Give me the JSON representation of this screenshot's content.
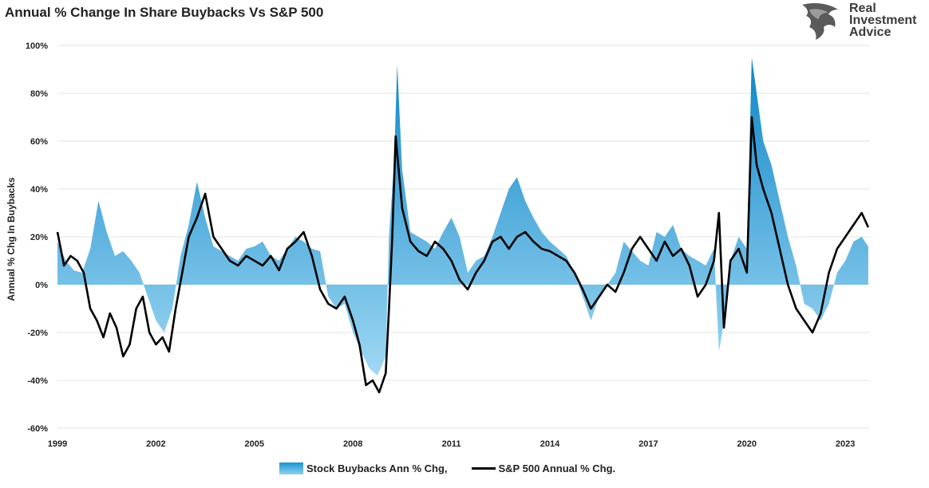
{
  "chart_data": {
    "type": "area",
    "title": "Annual % Change In Share Buybacks Vs S&P 500",
    "ylabel": "Annual % Chg In Buybacks",
    "xlabel": "",
    "ylim": [
      -60,
      100
    ],
    "xlim": [
      1999.0,
      2023.75
    ],
    "yticks": [
      "100%",
      "80%",
      "60%",
      "40%",
      "20%",
      "0%",
      "-20%",
      "-40%",
      "-60%"
    ],
    "ytick_values": [
      100,
      80,
      60,
      40,
      20,
      0,
      -20,
      -40,
      -60
    ],
    "xticks": [
      "1999",
      "2002",
      "2005",
      "2008",
      "2011",
      "2014",
      "2017",
      "2020",
      "2023"
    ],
    "xtick_values": [
      1999,
      2002,
      2005,
      2008,
      2011,
      2014,
      2017,
      2020,
      2023
    ],
    "grid": true,
    "legend_position": "bottom",
    "series": [
      {
        "name": "Stock Buybacks Ann % Chg,",
        "type": "area",
        "color": "#1b94d2",
        "x": [
          1999.0,
          1999.25,
          1999.5,
          1999.75,
          2000.0,
          2000.25,
          2000.5,
          2000.75,
          2001.0,
          2001.25,
          2001.5,
          2001.75,
          2002.0,
          2002.25,
          2002.5,
          2002.75,
          2003.0,
          2003.25,
          2003.5,
          2003.75,
          2004.0,
          2004.25,
          2004.5,
          2004.75,
          2005.0,
          2005.25,
          2005.5,
          2005.75,
          2006.0,
          2006.25,
          2006.5,
          2006.75,
          2007.0,
          2007.25,
          2007.5,
          2007.75,
          2008.0,
          2008.25,
          2008.5,
          2008.75,
          2009.0,
          2009.1,
          2009.25,
          2009.35,
          2009.5,
          2009.75,
          2010.0,
          2010.25,
          2010.5,
          2010.75,
          2011.0,
          2011.25,
          2011.5,
          2011.75,
          2012.0,
          2012.25,
          2012.5,
          2012.75,
          2013.0,
          2013.25,
          2013.5,
          2013.75,
          2014.0,
          2014.25,
          2014.5,
          2014.75,
          2015.0,
          2015.25,
          2015.5,
          2015.75,
          2016.0,
          2016.25,
          2016.5,
          2016.75,
          2017.0,
          2017.25,
          2017.5,
          2017.75,
          2018.0,
          2018.25,
          2018.5,
          2018.75,
          2019.0,
          2019.15,
          2019.25,
          2019.5,
          2019.75,
          2020.0,
          2020.15,
          2020.3,
          2020.5,
          2020.75,
          2021.0,
          2021.25,
          2021.5,
          2021.75,
          2022.0,
          2022.25,
          2022.5,
          2022.75,
          2023.0,
          2023.25,
          2023.5,
          2023.7
        ],
        "values": [
          18,
          10,
          6,
          5,
          15,
          35,
          22,
          12,
          14,
          10,
          5,
          -5,
          -15,
          -20,
          -10,
          12,
          25,
          43,
          28,
          16,
          14,
          12,
          10,
          15,
          16,
          18,
          12,
          10,
          15,
          20,
          18,
          15,
          14,
          -5,
          -10,
          -8,
          -20,
          -28,
          -35,
          -38,
          -30,
          20,
          50,
          92,
          48,
          22,
          20,
          18,
          15,
          22,
          28,
          20,
          5,
          10,
          12,
          20,
          30,
          40,
          45,
          35,
          28,
          22,
          18,
          15,
          12,
          5,
          -5,
          -15,
          -5,
          0,
          5,
          18,
          14,
          10,
          8,
          22,
          20,
          25,
          15,
          12,
          10,
          8,
          15,
          -28,
          -20,
          10,
          20,
          15,
          95,
          80,
          60,
          50,
          35,
          20,
          8,
          -8,
          -10,
          -15,
          -8,
          5,
          10,
          18,
          20,
          16
        ]
      },
      {
        "name": "S&P 500 Annual % Chg.",
        "type": "line",
        "color": "#000000",
        "x": [
          1999.0,
          1999.2,
          1999.4,
          1999.6,
          1999.8,
          2000.0,
          2000.2,
          2000.4,
          2000.6,
          2000.8,
          2001.0,
          2001.2,
          2001.4,
          2001.6,
          2001.8,
          2002.0,
          2002.2,
          2002.4,
          2002.6,
          2002.8,
          2003.0,
          2003.25,
          2003.5,
          2003.75,
          2004.0,
          2004.25,
          2004.5,
          2004.75,
          2005.0,
          2005.25,
          2005.5,
          2005.75,
          2006.0,
          2006.25,
          2006.5,
          2006.75,
          2007.0,
          2007.25,
          2007.5,
          2007.75,
          2008.0,
          2008.2,
          2008.4,
          2008.6,
          2008.8,
          2009.0,
          2009.1,
          2009.2,
          2009.3,
          2009.5,
          2009.75,
          2010.0,
          2010.25,
          2010.5,
          2010.75,
          2011.0,
          2011.25,
          2011.5,
          2011.75,
          2012.0,
          2012.25,
          2012.5,
          2012.75,
          2013.0,
          2013.25,
          2013.5,
          2013.75,
          2014.0,
          2014.25,
          2014.5,
          2014.75,
          2015.0,
          2015.25,
          2015.5,
          2015.75,
          2016.0,
          2016.25,
          2016.5,
          2016.75,
          2017.0,
          2017.25,
          2017.5,
          2017.75,
          2018.0,
          2018.25,
          2018.5,
          2018.75,
          2019.0,
          2019.15,
          2019.3,
          2019.5,
          2019.75,
          2020.0,
          2020.15,
          2020.3,
          2020.5,
          2020.75,
          2021.0,
          2021.25,
          2021.5,
          2021.75,
          2022.0,
          2022.25,
          2022.5,
          2022.75,
          2023.0,
          2023.25,
          2023.5,
          2023.7
        ],
        "values": [
          22,
          8,
          12,
          10,
          5,
          -10,
          -15,
          -22,
          -12,
          -18,
          -30,
          -25,
          -10,
          -5,
          -20,
          -25,
          -22,
          -28,
          -10,
          5,
          20,
          28,
          38,
          20,
          15,
          10,
          8,
          12,
          10,
          8,
          12,
          6,
          15,
          18,
          22,
          12,
          -2,
          -8,
          -10,
          -5,
          -15,
          -25,
          -42,
          -40,
          -45,
          -37,
          -10,
          20,
          62,
          32,
          18,
          14,
          12,
          18,
          15,
          10,
          2,
          -2,
          5,
          10,
          18,
          20,
          15,
          20,
          22,
          18,
          15,
          14,
          12,
          10,
          5,
          -2,
          -10,
          -5,
          0,
          -3,
          5,
          15,
          20,
          15,
          10,
          18,
          12,
          15,
          8,
          -5,
          0,
          10,
          30,
          -18,
          10,
          15,
          5,
          70,
          50,
          40,
          30,
          15,
          0,
          -10,
          -15,
          -20,
          -12,
          5,
          15,
          20,
          25,
          30,
          24
        ]
      }
    ]
  },
  "logo": {
    "line1": "Real",
    "line2": "Investment",
    "line3": "Advice",
    "icon": "eagle-icon"
  }
}
